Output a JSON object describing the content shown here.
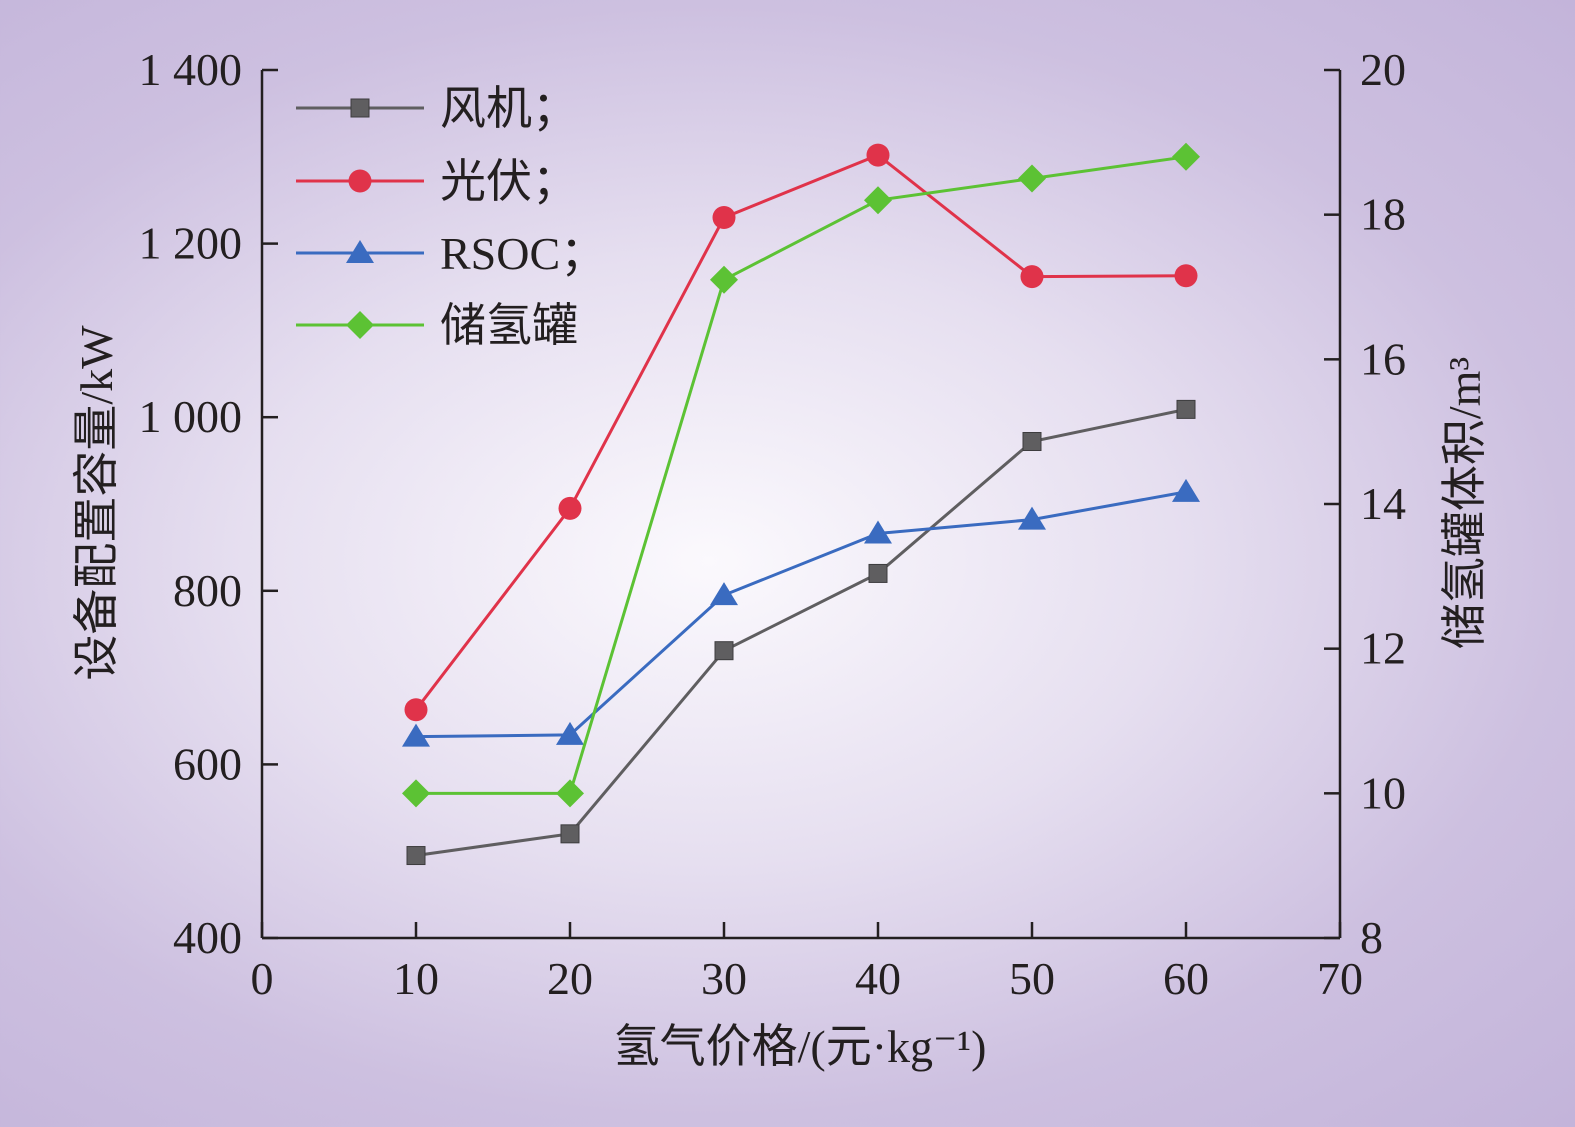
{
  "chart_data": {
    "type": "line",
    "xlabel": "氢气价格/(元·kg⁻¹)",
    "ylabel": "设备配置容量/kW",
    "y2label": "储氢罐体积/m³",
    "xlim": [
      0,
      70
    ],
    "ylim": [
      400,
      1400
    ],
    "y2lim": [
      8,
      20
    ],
    "xticks": [
      0,
      10,
      20,
      30,
      40,
      50,
      60,
      70
    ],
    "xtick_labels": [
      "0",
      "10",
      "20",
      "30",
      "40",
      "50",
      "60",
      "70"
    ],
    "yticks": [
      400,
      600,
      800,
      1000,
      1200,
      1400
    ],
    "ytick_labels": [
      "400",
      "600",
      "800",
      "1 000",
      "1 200",
      "1 400"
    ],
    "y2ticks": [
      8,
      10,
      12,
      14,
      16,
      18,
      20
    ],
    "y2tick_labels": [
      "8",
      "10",
      "12",
      "14",
      "16",
      "18",
      "20"
    ],
    "grid": false,
    "legend_position": "top-left",
    "series": [
      {
        "name": "风机；",
        "axis": "left",
        "marker": "square",
        "color": "#5f5e60",
        "x": [
          10,
          20,
          30,
          40,
          50,
          60
        ],
        "y": [
          495,
          520,
          731,
          820,
          972,
          1009
        ]
      },
      {
        "name": "光伏；",
        "axis": "left",
        "marker": "circle",
        "color": "#e0334a",
        "x": [
          10,
          20,
          30,
          40,
          50,
          60
        ],
        "y": [
          663,
          895,
          1230,
          1302,
          1162,
          1163
        ]
      },
      {
        "name": "RSOC；",
        "axis": "left",
        "marker": "triangle",
        "color": "#3a6bc0",
        "x": [
          10,
          20,
          30,
          40,
          50,
          60
        ],
        "y": [
          632,
          634,
          795,
          866,
          882,
          914
        ]
      },
      {
        "name": "储氢罐",
        "axis": "right",
        "marker": "diamond",
        "color": "#5cc234",
        "x": [
          10,
          20,
          30,
          40,
          50,
          60
        ],
        "y": [
          10.0,
          10.0,
          17.1,
          18.2,
          18.5,
          18.8
        ]
      }
    ]
  }
}
